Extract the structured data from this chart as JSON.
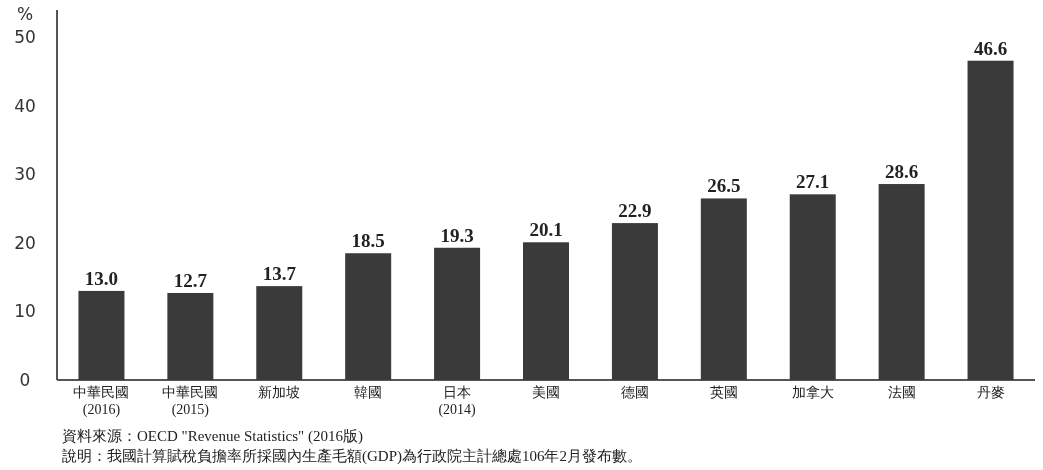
{
  "chart_data": {
    "type": "bar",
    "ylabel": "%",
    "categories": [
      "中華民國\n(2016)",
      "中華民國\n(2015)",
      "新加坡",
      "韓國",
      "日本\n(2014)",
      "美國",
      "德國",
      "英國",
      "加拿大",
      "法國",
      "丹麥"
    ],
    "values": [
      13.0,
      12.7,
      13.7,
      18.5,
      19.3,
      20.1,
      22.9,
      26.5,
      27.1,
      28.6,
      46.6
    ],
    "value_labels": [
      "13.0",
      "12.7",
      "13.7",
      "18.5",
      "19.3",
      "20.1",
      "22.9",
      "26.5",
      "27.1",
      "28.6",
      "46.6"
    ],
    "color": "#3a3a3a",
    "ylim": [
      0,
      54
    ],
    "yticks": [
      0,
      10,
      20,
      30,
      40,
      50
    ],
    "grid": false,
    "annotations": [
      "資料來源：OECD \"Revenue Statistics\" (2016版)",
      "說明：我國計算賦稅負擔率所採國內生產毛額(GDP)為行政院主計總處106年2月發布數。"
    ]
  }
}
